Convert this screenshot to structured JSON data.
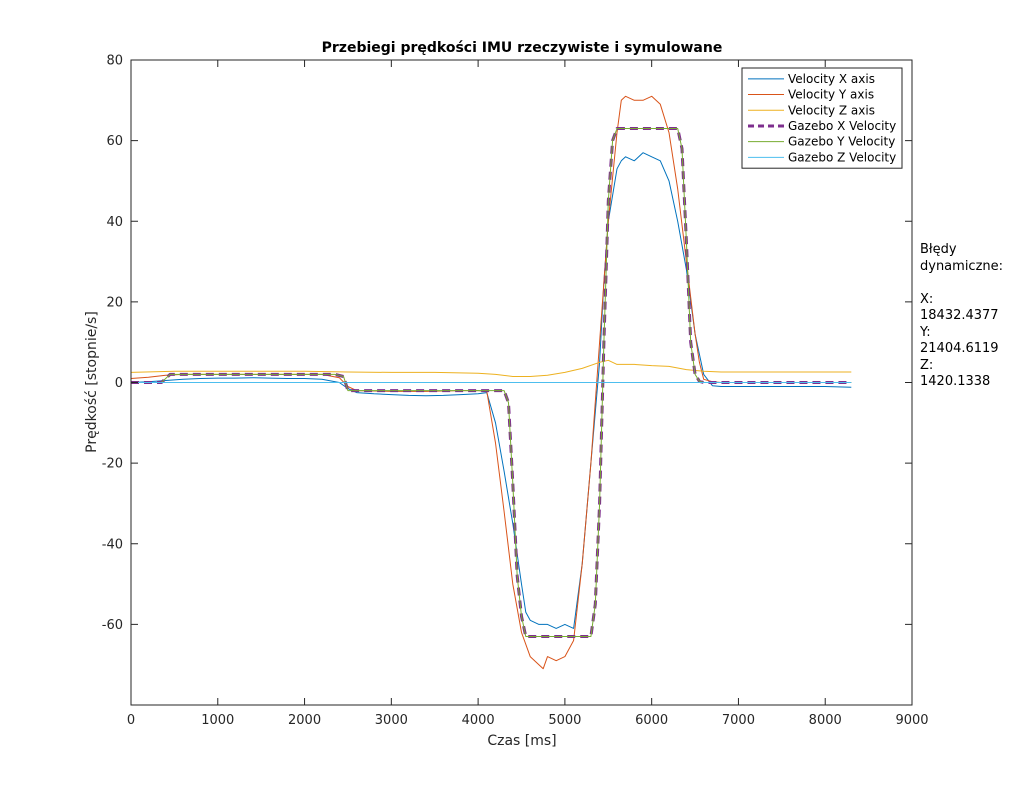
{
  "chart_data": {
    "type": "line",
    "title": "Przebiegi prędkości IMU rzeczywiste i symulowane",
    "xlabel": "Czas [ms]",
    "ylabel": "Prędkość [stopnie/s]",
    "xlim": [
      0,
      9000
    ],
    "ylim": [
      -80,
      80
    ],
    "xticks": [
      0,
      1000,
      2000,
      3000,
      4000,
      5000,
      6000,
      7000,
      8000,
      9000
    ],
    "yticks": [
      -60,
      -40,
      -20,
      0,
      20,
      40,
      60,
      80
    ],
    "grid": false,
    "legend_position": "top-right",
    "series": [
      {
        "name": "Velocity X axis",
        "color": "#0072BD",
        "width": 1,
        "dash": "",
        "x": [
          0,
          200,
          400,
          600,
          800,
          1000,
          1200,
          1400,
          1600,
          1800,
          2000,
          2200,
          2400,
          2500,
          2600,
          2800,
          3000,
          3200,
          3400,
          3600,
          3800,
          4000,
          4100,
          4200,
          4300,
          4400,
          4500,
          4550,
          4600,
          4700,
          4800,
          4900,
          5000,
          5100,
          5200,
          5300,
          5400,
          5450,
          5500,
          5600,
          5650,
          5700,
          5800,
          5900,
          6000,
          6100,
          6200,
          6300,
          6400,
          6500,
          6600,
          6700,
          6800,
          7000,
          7500,
          8000,
          8300
        ],
        "y": [
          0,
          0.2,
          0.5,
          0.8,
          1,
          1.1,
          1.1,
          1.2,
          1.1,
          1,
          1,
          0.8,
          0,
          -1.5,
          -2.5,
          -2.8,
          -3,
          -3.2,
          -3.3,
          -3.2,
          -3,
          -2.8,
          -2.5,
          -10,
          -22,
          -35,
          -50,
          -57,
          -59,
          -60,
          -60,
          -61,
          -60,
          -61,
          -45,
          -20,
          5,
          25,
          40,
          53,
          55,
          56,
          55,
          57,
          56,
          55,
          50,
          40,
          28,
          12,
          2,
          -0.8,
          -1,
          -1,
          -1,
          -1,
          -1.2
        ]
      },
      {
        "name": "Velocity Y axis",
        "color": "#D95319",
        "width": 1,
        "dash": "",
        "x": [
          0,
          200,
          400,
          600,
          800,
          1000,
          1200,
          1400,
          1600,
          1800,
          2000,
          2200,
          2400,
          2500,
          2600,
          2800,
          3000,
          3200,
          3400,
          3600,
          3800,
          4000,
          4100,
          4200,
          4300,
          4400,
          4500,
          4600,
          4700,
          4750,
          4800,
          4900,
          5000,
          5100,
          5200,
          5300,
          5400,
          5500,
          5600,
          5650,
          5700,
          5800,
          5900,
          6000,
          6100,
          6200,
          6300,
          6400,
          6500,
          6550,
          6600,
          6700,
          6800,
          7000,
          7500,
          8000,
          8300
        ],
        "y": [
          1,
          1.3,
          1.8,
          2,
          2,
          2,
          2,
          2,
          2,
          2,
          2,
          2,
          1.2,
          -1,
          -2,
          -2.1,
          -2.2,
          -2.2,
          -2.2,
          -2.1,
          -2,
          -2,
          -2.2,
          -15,
          -32,
          -50,
          -62,
          -68,
          -70,
          -71,
          -68,
          -69,
          -68,
          -64,
          -45,
          -20,
          10,
          40,
          62,
          70,
          71,
          70,
          70,
          71,
          69,
          62,
          48,
          30,
          12,
          5,
          0.8,
          0.2,
          0,
          0,
          0,
          0,
          0
        ]
      },
      {
        "name": "Velocity Z axis",
        "color": "#EDB120",
        "width": 1,
        "dash": "",
        "x": [
          0,
          500,
          1000,
          1500,
          2000,
          2500,
          3000,
          3500,
          4000,
          4200,
          4400,
          4600,
          4800,
          5000,
          5200,
          5400,
          5500,
          5600,
          5800,
          6000,
          6200,
          6400,
          6600,
          6800,
          7000,
          7500,
          8000,
          8300
        ],
        "y": [
          2.5,
          2.8,
          2.8,
          2.8,
          2.8,
          2.6,
          2.5,
          2.5,
          2.3,
          2,
          1.5,
          1.5,
          1.8,
          2.5,
          3.5,
          5,
          5.5,
          4.5,
          4.5,
          4.2,
          4,
          3.2,
          2.8,
          2.6,
          2.6,
          2.6,
          2.6,
          2.6
        ]
      },
      {
        "name": "Gazebo X Velocity",
        "color": "#7E2F8E",
        "width": 3,
        "dash": "8,5",
        "x": [
          0,
          350,
          450,
          500,
          2000,
          2350,
          2450,
          2500,
          4000,
          4300,
          4350,
          4400,
          4450,
          4500,
          4550,
          4600,
          5200,
          5300,
          5350,
          5400,
          5450,
          5500,
          5550,
          5600,
          6300,
          6350,
          6400,
          6450,
          6500,
          6550,
          6600,
          8300
        ],
        "y": [
          0,
          0,
          2,
          2,
          2,
          2,
          1.5,
          -2,
          -2,
          -2,
          -5,
          -25,
          -48,
          -58,
          -63,
          -63,
          -63,
          -63,
          -55,
          -30,
          10,
          45,
          60,
          63,
          63,
          58,
          35,
          10,
          2,
          0.3,
          0,
          0
        ]
      },
      {
        "name": "Gazebo Y Velocity",
        "color": "#77AC30",
        "width": 1,
        "dash": "",
        "x": [
          0,
          350,
          450,
          500,
          2000,
          2350,
          2450,
          2500,
          4000,
          4300,
          4350,
          4400,
          4450,
          4500,
          4550,
          4600,
          5200,
          5300,
          5350,
          5400,
          5450,
          5500,
          5550,
          5600,
          6300,
          6350,
          6400,
          6450,
          6500,
          6550,
          6600,
          8300
        ],
        "y": [
          0,
          0,
          2,
          2,
          2,
          2,
          1.5,
          -2,
          -2,
          -2,
          -5,
          -25,
          -48,
          -58,
          -63,
          -63,
          -63,
          -63,
          -55,
          -30,
          10,
          45,
          60,
          63,
          63,
          58,
          35,
          10,
          2,
          0.3,
          0,
          0
        ]
      },
      {
        "name": "Gazebo Z Velocity",
        "color": "#4DBEEE",
        "width": 1,
        "dash": "",
        "x": [
          0,
          8300
        ],
        "y": [
          0,
          0
        ]
      }
    ]
  },
  "side_text": {
    "heading_1": "Błędy",
    "heading_2": "dynamiczne:",
    "x_label": "X:",
    "x_value": "18432.4377",
    "y_label": "Y:",
    "y_value": "21404.6119",
    "z_label": "Z:",
    "z_value": "1420.1338"
  }
}
